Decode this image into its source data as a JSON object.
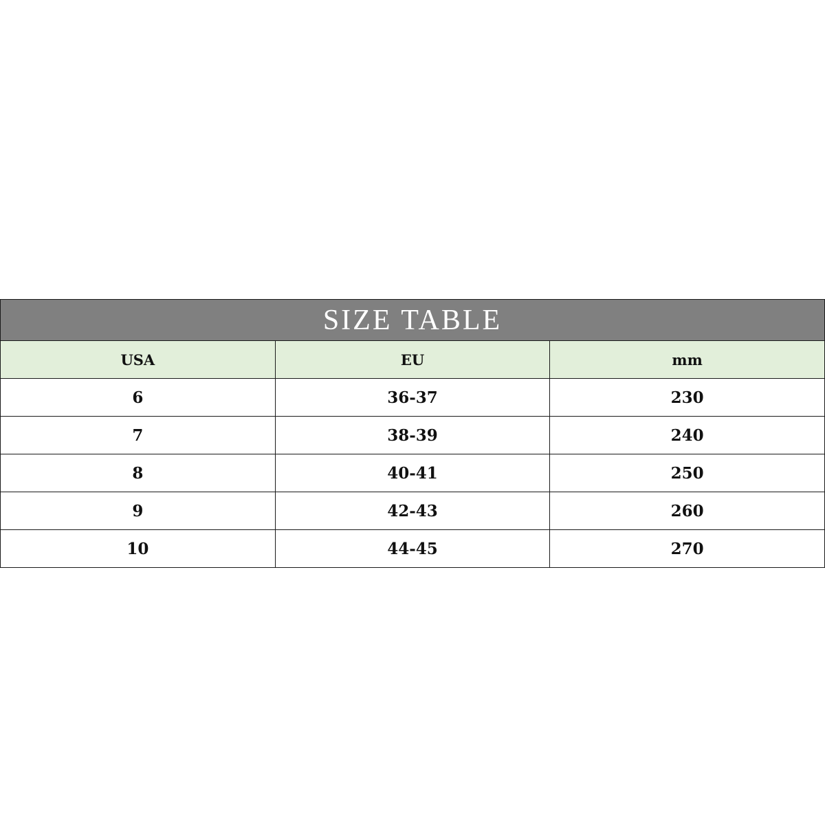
{
  "title": "SIZE TABLE",
  "colors": {
    "title_bg": "#808080",
    "header_bg": "#e2efda"
  },
  "headers": [
    "USA",
    "EU",
    "mm"
  ],
  "rows": [
    [
      "6",
      "36-37",
      "230"
    ],
    [
      "7",
      "38-39",
      "240"
    ],
    [
      "8",
      "40-41",
      "250"
    ],
    [
      "9",
      "42-43",
      "260"
    ],
    [
      "10",
      "44-45",
      "270"
    ]
  ]
}
